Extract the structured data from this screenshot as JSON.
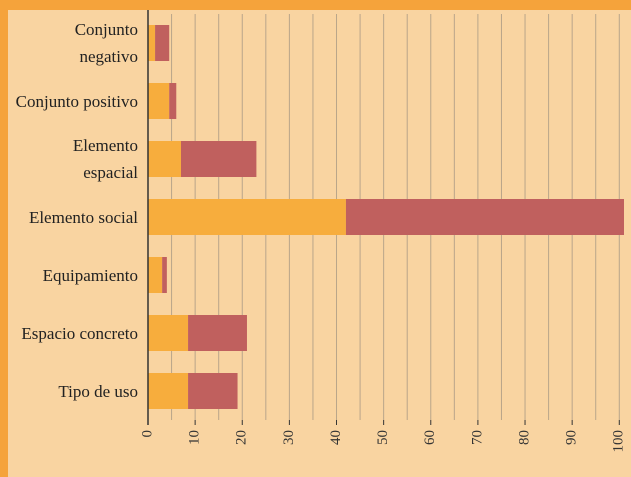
{
  "chart_data": {
    "type": "stacked_barh",
    "categories": [
      "Conjunto negativo",
      "Conjunto positivo",
      "Elemento espacial",
      "Elemento social",
      "Equipamiento",
      "Espacio concreto",
      "Tipo de uso"
    ],
    "series": [
      {
        "color": "#f7ad3d",
        "values": [
          1.5,
          4.5,
          7,
          42,
          3,
          8.5,
          8.5
        ]
      },
      {
        "color": "#c0605e",
        "values": [
          3,
          1.5,
          16,
          59,
          1,
          12.5,
          10.5
        ]
      }
    ],
    "xlim": [
      0,
      101
    ],
    "xticks": [
      0,
      10,
      20,
      30,
      40,
      50,
      60,
      70,
      80,
      90,
      100
    ],
    "minor_grid_step": 5,
    "grid": true
  }
}
